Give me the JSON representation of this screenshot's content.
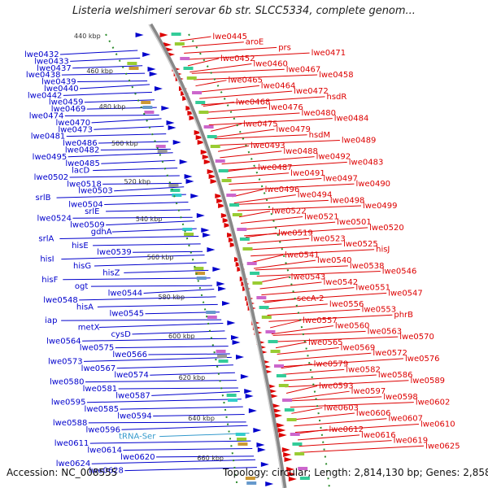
{
  "title": "Listeria welshimeri serovar 6b str. SLCC5334, complete genom...",
  "footer": {
    "accession": "Accession: NC_008555",
    "summary": "Topology: circular; Length: 2,814,130 bp; Genes: 2,858"
  },
  "colors": {
    "forward": "#0000cc",
    "reverse": "#dd0000",
    "rna": "#3399cc",
    "backbone": "#888888",
    "ticks": "#2a8a2a"
  },
  "ticks": [
    "440 kbp",
    "460 kbp",
    "480 kbp",
    "500 kbp",
    "520 kbp",
    "540 kbp",
    "560 kbp",
    "580 kbp",
    "600 kbp",
    "620 kbp",
    "640 kbp",
    "660 kbp"
  ],
  "left_labels": [
    {
      "t": "lwe0432",
      "c": "f"
    },
    {
      "t": "lwe0433",
      "c": "f"
    },
    {
      "t": "lwe0437",
      "c": "f"
    },
    {
      "t": "lwe0438",
      "c": "f"
    },
    {
      "t": "lwe0439",
      "c": "f"
    },
    {
      "t": "lwe0440",
      "c": "f"
    },
    {
      "t": "lwe0442",
      "c": "f"
    },
    {
      "t": "lwe0459",
      "c": "f"
    },
    {
      "t": "lwe0469",
      "c": "f"
    },
    {
      "t": "lwe0474",
      "c": "f"
    },
    {
      "t": "lwe0470",
      "c": "f"
    },
    {
      "t": "lwe0473",
      "c": "f"
    },
    {
      "t": "lwe0481",
      "c": "f"
    },
    {
      "t": "lwe0486",
      "c": "f"
    },
    {
      "t": "lwe0482",
      "c": "f"
    },
    {
      "t": "lwe0495",
      "c": "f"
    },
    {
      "t": "lwe0485",
      "c": "f"
    },
    {
      "t": "lacD",
      "c": "f"
    },
    {
      "t": "lwe0502",
      "c": "f"
    },
    {
      "t": "lwe0518",
      "c": "f"
    },
    {
      "t": "lwe0503",
      "c": "f"
    },
    {
      "t": "srlB",
      "c": "f"
    },
    {
      "t": "lwe0504",
      "c": "f"
    },
    {
      "t": "srlE",
      "c": "f"
    },
    {
      "t": "lwe0524",
      "c": "f"
    },
    {
      "t": "lwe0509",
      "c": "f"
    },
    {
      "t": "gdhA",
      "c": "f"
    },
    {
      "t": "srlA",
      "c": "f"
    },
    {
      "t": "hisE",
      "c": "f"
    },
    {
      "t": "lwe0539",
      "c": "f"
    },
    {
      "t": "hisI",
      "c": "f"
    },
    {
      "t": "hisG",
      "c": "f"
    },
    {
      "t": "hisZ",
      "c": "f"
    },
    {
      "t": "hisF",
      "c": "f"
    },
    {
      "t": "ogt",
      "c": "f"
    },
    {
      "t": "lwe0544",
      "c": "f"
    },
    {
      "t": "lwe0548",
      "c": "f"
    },
    {
      "t": "hisA",
      "c": "f"
    },
    {
      "t": "lwe0545",
      "c": "f"
    },
    {
      "t": "iap",
      "c": "f"
    },
    {
      "t": "metX",
      "c": "f"
    },
    {
      "t": "cysD",
      "c": "f"
    },
    {
      "t": "lwe0564",
      "c": "f"
    },
    {
      "t": "lwe0575",
      "c": "f"
    },
    {
      "t": "lwe0566",
      "c": "f"
    },
    {
      "t": "lwe0573",
      "c": "f"
    },
    {
      "t": "lwe0567",
      "c": "f"
    },
    {
      "t": "lwe0574",
      "c": "f"
    },
    {
      "t": "lwe0580",
      "c": "f"
    },
    {
      "t": "lwe0581",
      "c": "f"
    },
    {
      "t": "lwe0587",
      "c": "f"
    },
    {
      "t": "lwe0595",
      "c": "f"
    },
    {
      "t": "lwe0585",
      "c": "f"
    },
    {
      "t": "lwe0594",
      "c": "f"
    },
    {
      "t": "lwe0588",
      "c": "f"
    },
    {
      "t": "lwe0596",
      "c": "f"
    },
    {
      "t": "tRNA-Ser",
      "c": "r"
    },
    {
      "t": "lwe0611",
      "c": "f"
    },
    {
      "t": "lwe0614",
      "c": "f"
    },
    {
      "t": "lwe0620",
      "c": "f"
    },
    {
      "t": "lwe0624",
      "c": "f"
    },
    {
      "t": "lwe0628",
      "c": "f"
    }
  ],
  "right_labels": [
    {
      "t": "lwe0445"
    },
    {
      "t": "aroE"
    },
    {
      "t": "prs"
    },
    {
      "t": "lwe0471"
    },
    {
      "t": "lwe0452"
    },
    {
      "t": "lwe0460"
    },
    {
      "t": "lwe0467"
    },
    {
      "t": "lwe0458"
    },
    {
      "t": "lwe0465"
    },
    {
      "t": "lwe0464"
    },
    {
      "t": "lwe0472"
    },
    {
      "t": "hsdR"
    },
    {
      "t": "lwe0468"
    },
    {
      "t": "lwe0476"
    },
    {
      "t": "lwe0480"
    },
    {
      "t": "lwe0484"
    },
    {
      "t": "lwe0475"
    },
    {
      "t": "lwe0479"
    },
    {
      "t": "hsdM"
    },
    {
      "t": "lwe0489"
    },
    {
      "t": "lwe0493"
    },
    {
      "t": "lwe0488"
    },
    {
      "t": "lwe0492"
    },
    {
      "t": "lwe0483"
    },
    {
      "t": "lwe0487"
    },
    {
      "t": "lwe0491"
    },
    {
      "t": "lwe0497"
    },
    {
      "t": "lwe0490"
    },
    {
      "t": "lwe0496"
    },
    {
      "t": "lwe0494"
    },
    {
      "t": "lwe0498"
    },
    {
      "t": "lwe0499"
    },
    {
      "t": "lwe0522"
    },
    {
      "t": "lwe0521"
    },
    {
      "t": "lwe0501"
    },
    {
      "t": "lwe0520"
    },
    {
      "t": "lwe0519"
    },
    {
      "t": "lwe0523"
    },
    {
      "t": "lwe0525"
    },
    {
      "t": "hisJ"
    },
    {
      "t": "lwe0541"
    },
    {
      "t": "lwe0540"
    },
    {
      "t": "lwe0538"
    },
    {
      "t": "lwe0546"
    },
    {
      "t": "lwe0543"
    },
    {
      "t": "lwe0542"
    },
    {
      "t": "lwe0551"
    },
    {
      "t": "lwe0547"
    },
    {
      "t": "secA-2"
    },
    {
      "t": "lwe0556"
    },
    {
      "t": "lwe0553"
    },
    {
      "t": "phrB"
    },
    {
      "t": "lwe0557"
    },
    {
      "t": "lwe0560"
    },
    {
      "t": "lwe0563"
    },
    {
      "t": "lwe0570"
    },
    {
      "t": "lwe0565"
    },
    {
      "t": "lwe0569"
    },
    {
      "t": "lwe0572"
    },
    {
      "t": "lwe0576"
    },
    {
      "t": "lwe0579"
    },
    {
      "t": "lwe0582"
    },
    {
      "t": "lwe0586"
    },
    {
      "t": "lwe0589"
    },
    {
      "t": "lwe0593"
    },
    {
      "t": "lwe0597"
    },
    {
      "t": "lwe0598"
    },
    {
      "t": "lwe0602"
    },
    {
      "t": "lwe0603"
    },
    {
      "t": "lwe0606"
    },
    {
      "t": "lwe0607"
    },
    {
      "t": "lwe0610"
    },
    {
      "t": "lwe0612"
    },
    {
      "t": "lwe0616"
    },
    {
      "t": "lwe0619"
    },
    {
      "t": "lwe0625"
    }
  ]
}
